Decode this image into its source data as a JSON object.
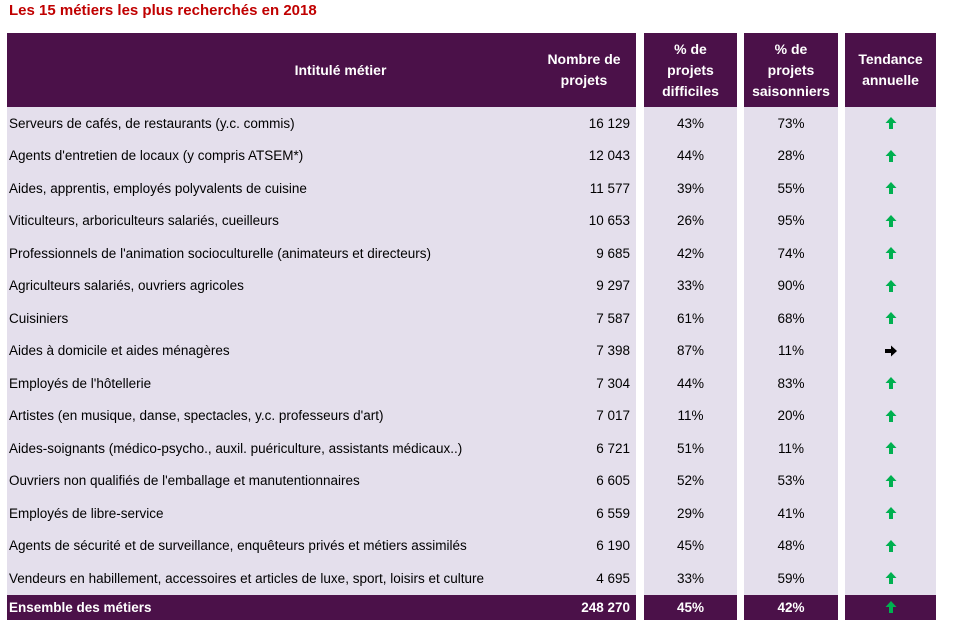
{
  "title": "Les 15 métiers les plus recherchés en 2018",
  "headers": {
    "job": "Intitulé métier",
    "projects_line1": "Nombre de",
    "projects_line2": "projets",
    "difficult_line1": "% de",
    "difficult_line2": "projets",
    "difficult_line3": "difficiles",
    "seasonal_line1": "% de",
    "seasonal_line2": "projets",
    "seasonal_line3": "saisonniers",
    "trend_line1": "Tendance",
    "trend_line2": "annuelle"
  },
  "rows": [
    {
      "job": "Serveurs de cafés, de restaurants (y.c. commis)",
      "projects": "16 129",
      "difficult": "43%",
      "seasonal": "73%",
      "trend": "up"
    },
    {
      "job": "Agents d'entretien de locaux (y compris ATSEM*)",
      "projects": "12 043",
      "difficult": "44%",
      "seasonal": "28%",
      "trend": "up"
    },
    {
      "job": "Aides, apprentis, employés polyvalents de cuisine",
      "projects": "11 577",
      "difficult": "39%",
      "seasonal": "55%",
      "trend": "up"
    },
    {
      "job": "Viticulteurs, arboriculteurs salariés, cueilleurs",
      "projects": "10 653",
      "difficult": "26%",
      "seasonal": "95%",
      "trend": "up"
    },
    {
      "job": "Professionnels de l'animation socioculturelle (animateurs et directeurs)",
      "projects": "9 685",
      "difficult": "42%",
      "seasonal": "74%",
      "trend": "up"
    },
    {
      "job": "Agriculteurs salariés, ouvriers agricoles",
      "projects": "9 297",
      "difficult": "33%",
      "seasonal": "90%",
      "trend": "up"
    },
    {
      "job": "Cuisiniers",
      "projects": "7 587",
      "difficult": "61%",
      "seasonal": "68%",
      "trend": "up"
    },
    {
      "job": "Aides à domicile et aides ménagères",
      "projects": "7 398",
      "difficult": "87%",
      "seasonal": "11%",
      "trend": "right"
    },
    {
      "job": "Employés de l'hôtellerie",
      "projects": "7 304",
      "difficult": "44%",
      "seasonal": "83%",
      "trend": "up"
    },
    {
      "job": "Artistes (en musique, danse, spectacles, y.c. professeurs d'art)",
      "projects": "7 017",
      "difficult": "11%",
      "seasonal": "20%",
      "trend": "up"
    },
    {
      "job": "Aides-soignants (médico-psycho., auxil. puériculture, assistants médicaux..)",
      "projects": "6 721",
      "difficult": "51%",
      "seasonal": "11%",
      "trend": "up"
    },
    {
      "job": "Ouvriers non qualifiés de l'emballage et manutentionnaires",
      "projects": "6 605",
      "difficult": "52%",
      "seasonal": "53%",
      "trend": "up"
    },
    {
      "job": "Employés de libre-service",
      "projects": "6 559",
      "difficult": "29%",
      "seasonal": "41%",
      "trend": "up"
    },
    {
      "job": "Agents de sécurité et de surveillance, enquêteurs privés et métiers assimilés",
      "projects": "6 190",
      "difficult": "45%",
      "seasonal": "48%",
      "trend": "up"
    },
    {
      "job": "Vendeurs en habillement, accessoires et articles de luxe, sport, loisirs et culture",
      "projects": "4 695",
      "difficult": "33%",
      "seasonal": "59%",
      "trend": "up"
    }
  ],
  "total": {
    "job": "Ensemble des métiers",
    "projects": "248 270",
    "difficult": "45%",
    "seasonal": "42%",
    "trend": "up"
  },
  "colors": {
    "header_bg": "#4b1149",
    "row_bg": "#e4dfec",
    "title": "#c00000",
    "arrow_up": "#00b050",
    "arrow_right": "#000000"
  }
}
